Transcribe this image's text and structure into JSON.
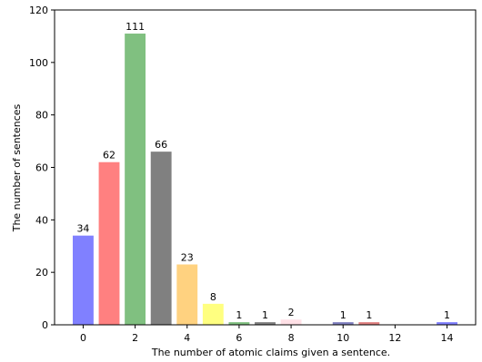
{
  "chart_data": {
    "type": "bar",
    "title": "",
    "xlabel": "The number of atomic claims given a sentence.",
    "ylabel": "The number of sentences",
    "xlim": [
      -1.1,
      15.1
    ],
    "ylim": [
      0,
      120
    ],
    "xticks": [
      0,
      2,
      4,
      6,
      8,
      10,
      12,
      14
    ],
    "yticks": [
      0,
      20,
      40,
      60,
      80,
      100,
      120
    ],
    "grid": false,
    "legend": "none",
    "bars": [
      {
        "x": 0,
        "value": 34,
        "label": "34",
        "color": "#8080ff"
      },
      {
        "x": 1,
        "value": 62,
        "label": "62",
        "color": "#ff8080"
      },
      {
        "x": 2,
        "value": 111,
        "label": "111",
        "color": "#80c080"
      },
      {
        "x": 3,
        "value": 66,
        "label": "66",
        "color": "#808080"
      },
      {
        "x": 4,
        "value": 23,
        "label": "23",
        "color": "#ffd280"
      },
      {
        "x": 5,
        "value": 8,
        "label": "8",
        "color": "#ffff80"
      },
      {
        "x": 6,
        "value": 1,
        "label": "1",
        "color": "#80c080"
      },
      {
        "x": 7,
        "value": 1,
        "label": "1",
        "color": "#808080"
      },
      {
        "x": 8,
        "value": 2,
        "label": "2",
        "color": "#ffe0e6"
      },
      {
        "x": 10,
        "value": 1,
        "label": "1",
        "color": "#8080c0"
      },
      {
        "x": 11,
        "value": 1,
        "label": "1",
        "color": "#e08080"
      },
      {
        "x": 14,
        "value": 1,
        "label": "1",
        "color": "#8080ff"
      }
    ]
  }
}
